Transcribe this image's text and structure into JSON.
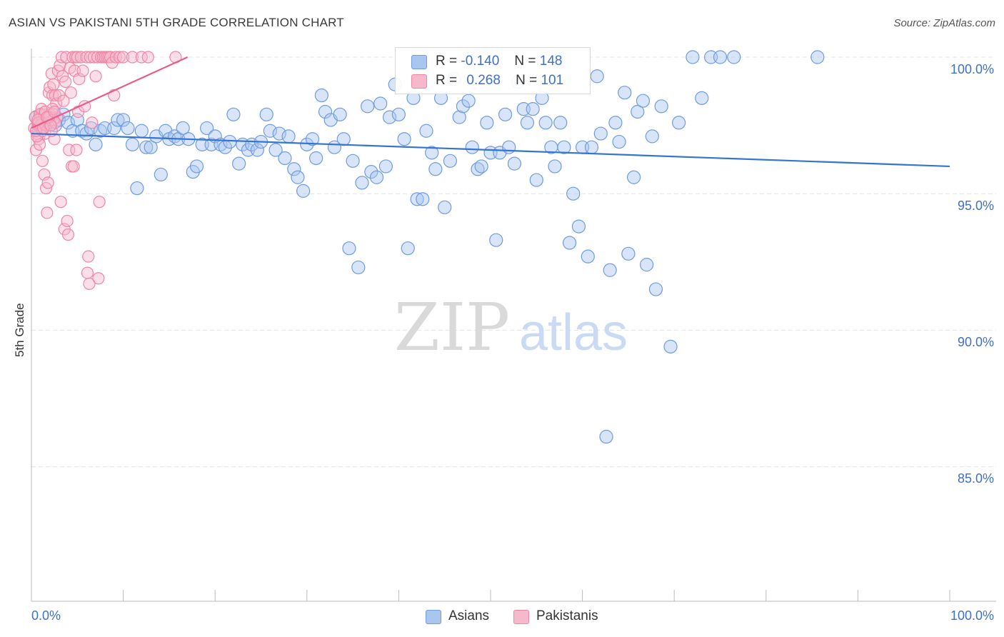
{
  "header": {
    "title": "ASIAN VS PAKISTANI 5TH GRADE CORRELATION CHART",
    "source": "Source: ZipAtlas.com"
  },
  "watermark": {
    "zip": "ZIP",
    "atlas": "atlas"
  },
  "legend": {
    "asians": {
      "r_label": "R =",
      "r_value": "-0.140",
      "n_label": "N =",
      "n_value": "148"
    },
    "pakistanis": {
      "r_label": "R =",
      "r_value": "0.268",
      "n_label": "N =",
      "n_value": "101"
    }
  },
  "bottom_legend": {
    "asians": "Asians",
    "pakistanis": "Pakistanis"
  },
  "colors": {
    "asians_fill": "#a9c6ef",
    "asians_stroke": "#6f9be0",
    "asians_line": "#3474d4",
    "pakistanis_fill": "#f6b8cb",
    "pakistanis_stroke": "#ee86a6",
    "pakistanis_line": "#e85c8c",
    "grid": "#e4e4e4",
    "axis_label": "#3f6fc6"
  },
  "chart_data": {
    "type": "scatter",
    "title": "ASIAN VS PAKISTANI 5TH GRADE CORRELATION CHART",
    "xlabel": "",
    "ylabel": "5th Grade",
    "x_tick_labels": [
      "0.0%",
      "100.0%"
    ],
    "y_tick_labels": [
      "100.0%",
      "95.0%",
      "90.0%",
      "85.0%"
    ],
    "xlim": [
      0,
      100
    ],
    "ylim": [
      80.5,
      100.7
    ],
    "grid": true,
    "series": [
      {
        "name": "Asians",
        "trend": {
          "x": [
            0,
            100
          ],
          "y": [
            97.2,
            96.0
          ]
        },
        "points": [
          [
            0.5,
            97.8
          ],
          [
            0.8,
            97.5
          ],
          [
            1.0,
            97.9
          ],
          [
            1.2,
            97.6
          ],
          [
            1.5,
            97.7
          ],
          [
            1.8,
            97.8
          ],
          [
            2.0,
            97.6
          ],
          [
            2.3,
            97.9
          ],
          [
            2.6,
            97.5
          ],
          [
            3.0,
            97.7
          ],
          [
            3.5,
            97.9
          ],
          [
            4.0,
            97.6
          ],
          [
            4.5,
            97.3
          ],
          [
            5.0,
            97.7
          ],
          [
            5.5,
            97.3
          ],
          [
            6.0,
            97.2
          ],
          [
            6.5,
            97.4
          ],
          [
            7.0,
            96.8
          ],
          [
            7.5,
            97.3
          ],
          [
            8.0,
            97.4
          ],
          [
            9.0,
            97.4
          ],
          [
            9.4,
            97.7
          ],
          [
            10.0,
            97.7
          ],
          [
            10.5,
            97.4
          ],
          [
            11.0,
            96.8
          ],
          [
            11.5,
            95.2
          ],
          [
            12.0,
            97.3
          ],
          [
            12.5,
            96.7
          ],
          [
            13.0,
            96.7
          ],
          [
            13.6,
            97.1
          ],
          [
            14.1,
            95.7
          ],
          [
            14.6,
            97.3
          ],
          [
            15.0,
            97.0
          ],
          [
            15.6,
            97.1
          ],
          [
            16.0,
            97.0
          ],
          [
            16.5,
            97.4
          ],
          [
            17.1,
            97.0
          ],
          [
            17.6,
            95.8
          ],
          [
            18.0,
            96.0
          ],
          [
            18.6,
            96.8
          ],
          [
            19.1,
            97.4
          ],
          [
            19.6,
            96.8
          ],
          [
            20.0,
            97.1
          ],
          [
            20.6,
            96.8
          ],
          [
            21.1,
            96.7
          ],
          [
            21.6,
            96.9
          ],
          [
            22.0,
            97.9
          ],
          [
            22.6,
            96.1
          ],
          [
            23.0,
            96.8
          ],
          [
            23.6,
            96.6
          ],
          [
            24.0,
            96.8
          ],
          [
            24.6,
            96.6
          ],
          [
            25.0,
            96.9
          ],
          [
            25.6,
            97.9
          ],
          [
            26.0,
            97.3
          ],
          [
            26.6,
            96.6
          ],
          [
            27.0,
            97.2
          ],
          [
            27.6,
            96.3
          ],
          [
            28.0,
            97.1
          ],
          [
            28.6,
            95.9
          ],
          [
            29.0,
            95.6
          ],
          [
            29.6,
            95.1
          ],
          [
            30.0,
            96.8
          ],
          [
            30.6,
            97.0
          ],
          [
            31.0,
            96.3
          ],
          [
            31.6,
            98.6
          ],
          [
            32.0,
            98.0
          ],
          [
            32.6,
            97.7
          ],
          [
            33.0,
            96.7
          ],
          [
            33.6,
            97.9
          ],
          [
            34.0,
            97.0
          ],
          [
            34.6,
            93.0
          ],
          [
            35.0,
            96.2
          ],
          [
            35.6,
            92.3
          ],
          [
            36.0,
            95.4
          ],
          [
            36.6,
            98.2
          ],
          [
            37.0,
            95.8
          ],
          [
            37.6,
            95.6
          ],
          [
            38.0,
            98.3
          ],
          [
            38.6,
            96.0
          ],
          [
            39.0,
            97.8
          ],
          [
            39.6,
            99.0
          ],
          [
            40.0,
            97.9
          ],
          [
            40.6,
            97.0
          ],
          [
            41.0,
            93.0
          ],
          [
            41.6,
            98.5
          ],
          [
            42.0,
            94.8
          ],
          [
            42.6,
            94.8
          ],
          [
            43.0,
            97.3
          ],
          [
            43.6,
            96.5
          ],
          [
            44.0,
            95.9
          ],
          [
            44.6,
            98.5
          ],
          [
            45.0,
            94.5
          ],
          [
            45.6,
            96.2
          ],
          [
            46.0,
            99.2
          ],
          [
            46.6,
            97.8
          ],
          [
            47.0,
            98.2
          ],
          [
            47.6,
            98.4
          ],
          [
            48.0,
            96.7
          ],
          [
            48.6,
            95.9
          ],
          [
            49.0,
            96.0
          ],
          [
            49.6,
            97.6
          ],
          [
            50.0,
            96.5
          ],
          [
            50.6,
            93.3
          ],
          [
            51.0,
            96.5
          ],
          [
            51.6,
            97.9
          ],
          [
            52.0,
            96.7
          ],
          [
            52.6,
            96.1
          ],
          [
            53.0,
            99.1
          ],
          [
            53.6,
            98.1
          ],
          [
            54.0,
            97.6
          ],
          [
            54.6,
            98.1
          ],
          [
            55.0,
            95.5
          ],
          [
            55.6,
            98.5
          ],
          [
            56.0,
            97.6
          ],
          [
            56.6,
            96.7
          ],
          [
            57.0,
            96.0
          ],
          [
            57.6,
            97.6
          ],
          [
            58.0,
            96.7
          ],
          [
            58.6,
            93.2
          ],
          [
            59.0,
            95.0
          ],
          [
            59.6,
            93.8
          ],
          [
            60.0,
            96.7
          ],
          [
            60.6,
            92.7
          ],
          [
            61.0,
            96.7
          ],
          [
            61.6,
            99.3
          ],
          [
            62.0,
            97.2
          ],
          [
            62.6,
            86.1
          ],
          [
            63.0,
            92.2
          ],
          [
            63.6,
            97.6
          ],
          [
            64.0,
            96.9
          ],
          [
            64.6,
            98.7
          ],
          [
            65.0,
            92.8
          ],
          [
            65.6,
            95.6
          ],
          [
            66.0,
            98.0
          ],
          [
            66.6,
            98.4
          ],
          [
            67.0,
            92.4
          ],
          [
            67.6,
            97.1
          ],
          [
            68.0,
            91.5
          ],
          [
            68.6,
            98.2
          ],
          [
            69.6,
            89.4
          ],
          [
            70.5,
            97.6
          ],
          [
            72.0,
            100.0
          ],
          [
            73.0,
            98.5
          ],
          [
            74.0,
            100.0
          ],
          [
            75.0,
            100.0
          ],
          [
            76.5,
            100.0
          ],
          [
            85.6,
            100.0
          ]
        ]
      },
      {
        "name": "Pakistanis",
        "trend": {
          "x": [
            0,
            17
          ],
          "y": [
            97.4,
            100.0
          ]
        },
        "points": [
          [
            0.3,
            97.4
          ],
          [
            0.4,
            97.8
          ],
          [
            0.5,
            96.6
          ],
          [
            0.6,
            97.2
          ],
          [
            0.7,
            97.6
          ],
          [
            0.8,
            97.0
          ],
          [
            0.9,
            96.8
          ],
          [
            1.0,
            97.4
          ],
          [
            1.1,
            97.9
          ],
          [
            1.2,
            96.2
          ],
          [
            1.3,
            97.6
          ],
          [
            1.4,
            95.7
          ],
          [
            1.5,
            97.2
          ],
          [
            1.6,
            95.2
          ],
          [
            1.7,
            94.3
          ],
          [
            1.8,
            95.4
          ],
          [
            1.9,
            98.7
          ],
          [
            2.0,
            98.9
          ],
          [
            2.1,
            97.8
          ],
          [
            2.2,
            99.4
          ],
          [
            2.3,
            98.6
          ],
          [
            2.4,
            99.0
          ],
          [
            2.5,
            97.0
          ],
          [
            2.6,
            98.6
          ],
          [
            2.7,
            98.3
          ],
          [
            2.8,
            97.8
          ],
          [
            2.9,
            99.5
          ],
          [
            3.0,
            98.6
          ],
          [
            3.1,
            99.7
          ],
          [
            3.2,
            94.7
          ],
          [
            3.3,
            100.0
          ],
          [
            3.4,
            99.3
          ],
          [
            3.5,
            98.4
          ],
          [
            3.6,
            93.7
          ],
          [
            3.7,
            99.1
          ],
          [
            3.8,
            100.0
          ],
          [
            3.9,
            94.0
          ],
          [
            4.0,
            93.5
          ],
          [
            4.1,
            96.6
          ],
          [
            4.2,
            99.6
          ],
          [
            4.3,
            98.7
          ],
          [
            4.4,
            96.0
          ],
          [
            4.5,
            100.0
          ],
          [
            4.6,
            96.0
          ],
          [
            4.7,
            99.5
          ],
          [
            4.8,
            100.0
          ],
          [
            4.9,
            96.6
          ],
          [
            5.0,
            100.0
          ],
          [
            5.1,
            98.0
          ],
          [
            5.2,
            99.2
          ],
          [
            5.4,
            100.0
          ],
          [
            5.6,
            99.5
          ],
          [
            5.8,
            98.2
          ],
          [
            6.0,
            100.0
          ],
          [
            6.2,
            92.7
          ],
          [
            6.4,
            100.0
          ],
          [
            6.6,
            97.6
          ],
          [
            6.8,
            100.0
          ],
          [
            7.0,
            99.3
          ],
          [
            7.2,
            100.0
          ],
          [
            7.4,
            94.7
          ],
          [
            7.6,
            100.0
          ],
          [
            7.8,
            100.0
          ],
          [
            8.0,
            100.0
          ],
          [
            8.2,
            100.0
          ],
          [
            8.4,
            100.0
          ],
          [
            8.6,
            100.0
          ],
          [
            8.8,
            99.8
          ],
          [
            9.0,
            98.6
          ],
          [
            9.2,
            100.0
          ],
          [
            9.6,
            100.0
          ],
          [
            10.0,
            100.0
          ],
          [
            11.0,
            100.0
          ],
          [
            12.0,
            100.0
          ],
          [
            12.7,
            100.0
          ],
          [
            15.7,
            100.0
          ],
          [
            6.1,
            92.1
          ],
          [
            6.3,
            91.7
          ],
          [
            7.3,
            91.9
          ],
          [
            0.6,
            97.1
          ],
          [
            0.9,
            97.9
          ],
          [
            1.0,
            97.5
          ],
          [
            1.2,
            97.3
          ],
          [
            1.4,
            97.9
          ],
          [
            1.6,
            97.5
          ],
          [
            1.8,
            97.6
          ],
          [
            2.0,
            97.9
          ],
          [
            2.2,
            97.3
          ],
          [
            2.4,
            97.7
          ],
          [
            2.6,
            97.6
          ],
          [
            0.8,
            97.6
          ],
          [
            1.1,
            98.1
          ],
          [
            1.5,
            98.0
          ],
          [
            1.9,
            97.8
          ],
          [
            2.3,
            98.1
          ],
          [
            0.5,
            97.3
          ],
          [
            0.7,
            97.7
          ],
          [
            1.3,
            97.4
          ],
          [
            1.7,
            97.8
          ],
          [
            2.1,
            97.5
          ],
          [
            2.5,
            98.0
          ]
        ]
      }
    ]
  }
}
